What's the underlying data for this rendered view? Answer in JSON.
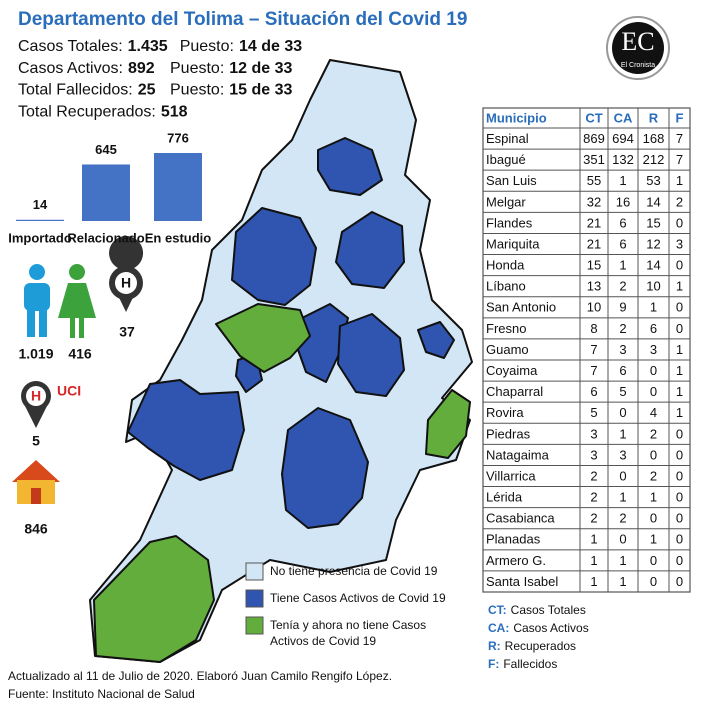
{
  "header": {
    "title": "Departamento del Tolima – Situación del Covid 19"
  },
  "logo": {
    "initials": "EC",
    "name": "El Cronista"
  },
  "stats": [
    {
      "label": "Casos Totales:",
      "value": "1.435",
      "rank_label": "Puesto:",
      "rank": "14 de 33"
    },
    {
      "label": "Casos Activos:",
      "value": "892",
      "rank_label": "Puesto:",
      "rank": "12 de 33"
    },
    {
      "label": "Total Fallecidos:",
      "value": "25",
      "rank_label": "Puesto:",
      "rank": "15 de 33"
    },
    {
      "label": "Total Recuperados:",
      "value": "518"
    }
  ],
  "origin_chart": {
    "type": "bar",
    "categories": [
      "Importado",
      "Relacionado",
      "En estudio"
    ],
    "values": [
      14,
      645,
      776
    ],
    "color": "#4472c4"
  },
  "gender": {
    "men": "1.019",
    "women": "416"
  },
  "hospital": {
    "value": 37
  },
  "uci": {
    "label": "UCI",
    "value": 5
  },
  "home": {
    "value": 846
  },
  "map_legend": [
    {
      "label": "No tiene presencia de Covid 19",
      "color": "#d3e6f5"
    },
    {
      "label": "Tiene Casos Activos de Covid 19",
      "color": "#2f55b0"
    },
    {
      "label": "Tenía y ahora no tiene Casos Activos de Covid 19",
      "color": "#63ad3c"
    }
  ],
  "table": {
    "header": [
      "Municipio",
      "CT",
      "CA",
      "R",
      "F"
    ],
    "rows": [
      [
        "Espinal",
        869,
        694,
        168,
        7
      ],
      [
        "Ibagué",
        351,
        132,
        212,
        7
      ],
      [
        "San Luis",
        55,
        1,
        53,
        1
      ],
      [
        "Melgar",
        32,
        16,
        14,
        2
      ],
      [
        "Flandes",
        21,
        6,
        15,
        0
      ],
      [
        "Mariquita",
        21,
        6,
        12,
        3
      ],
      [
        "Honda",
        15,
        1,
        14,
        0
      ],
      [
        "Líbano",
        13,
        2,
        10,
        1
      ],
      [
        "San Antonio",
        10,
        9,
        1,
        0
      ],
      [
        "Fresno",
        8,
        2,
        6,
        0
      ],
      [
        "Guamo",
        7,
        3,
        3,
        1
      ],
      [
        "Coyaima",
        7,
        6,
        0,
        1
      ],
      [
        "Chaparral",
        6,
        5,
        0,
        1
      ],
      [
        "Rovira",
        5,
        0,
        4,
        1
      ],
      [
        "Piedras",
        3,
        1,
        2,
        0
      ],
      [
        "Natagaima",
        3,
        3,
        0,
        0
      ],
      [
        "Villarrica",
        2,
        0,
        2,
        0
      ],
      [
        "Lérida",
        2,
        1,
        1,
        0
      ],
      [
        "Casabianca",
        2,
        2,
        0,
        0
      ],
      [
        "Planadas",
        1,
        0,
        1,
        0
      ],
      [
        "Armero G.",
        1,
        1,
        0,
        0
      ],
      [
        "Santa Isabel",
        1,
        1,
        0,
        0
      ]
    ]
  },
  "key": [
    {
      "abbr": "CT:",
      "text": "Casos Totales"
    },
    {
      "abbr": "CA:",
      "text": "Casos Activos"
    },
    {
      "abbr": "R:",
      "text": "Recuperados"
    },
    {
      "abbr": "F:",
      "text": "Fallecidos"
    }
  ],
  "footer": [
    "Actualizado al 11 de Julio de 2020. Elaboró Juan Camilo Rengifo López.",
    "Fuente: Instituto Nacional de Salud"
  ]
}
